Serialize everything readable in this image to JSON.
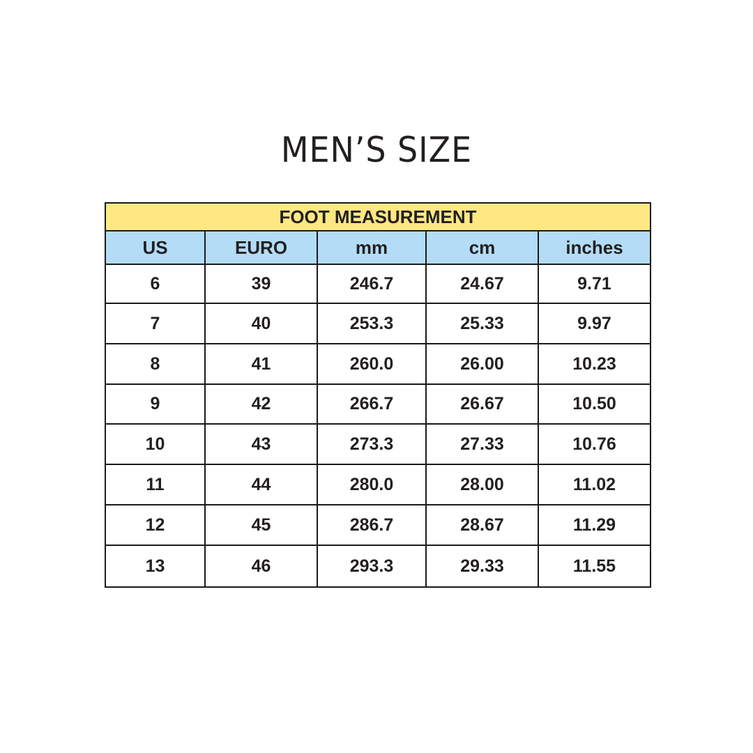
{
  "title": "MEN’S SIZE",
  "table": {
    "caption": "FOOT MEASUREMENT",
    "headers": [
      "US",
      "EURO",
      "mm",
      "cm",
      "inches"
    ],
    "rows": [
      [
        "6",
        "39",
        "246.7",
        "24.67",
        "9.71"
      ],
      [
        "7",
        "40",
        "253.3",
        "25.33",
        "9.97"
      ],
      [
        "8",
        "41",
        "260.0",
        "26.00",
        "10.23"
      ],
      [
        "9",
        "42",
        "266.7",
        "26.67",
        "10.50"
      ],
      [
        "10",
        "43",
        "273.3",
        "27.33",
        "10.76"
      ],
      [
        "11",
        "44",
        "280.0",
        "28.00",
        "11.02"
      ],
      [
        "12",
        "45",
        "286.7",
        "28.67",
        "11.29"
      ],
      [
        "13",
        "46",
        "293.3",
        "29.33",
        "11.55"
      ]
    ],
    "colors": {
      "caption_bg": "#fde883",
      "header_bg": "#b3dcf6"
    }
  }
}
